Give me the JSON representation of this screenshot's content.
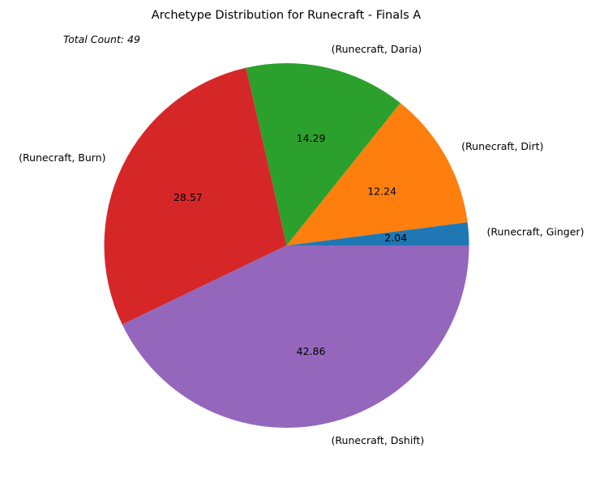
{
  "chart_data": {
    "type": "pie",
    "title": "Archetype Distribution for Runecraft - Finals A",
    "annotation": "Total Count: 49",
    "slices": [
      {
        "label": "(Runecraft, Ginger)",
        "value": 2.04,
        "color": "#1f77b4"
      },
      {
        "label": "(Runecraft, Dirt)",
        "value": 12.24,
        "color": "#ff7f0e"
      },
      {
        "label": "(Runecraft, Daria)",
        "value": 14.29,
        "color": "#2ca02c"
      },
      {
        "label": "(Runecraft, Burn)",
        "value": 28.57,
        "color": "#d62728"
      },
      {
        "label": "(Runecraft, Dshift)",
        "value": 42.86,
        "color": "#9467bd"
      }
    ],
    "start_angle_deg": 0,
    "direction": "counterclockwise",
    "legend": "none"
  }
}
